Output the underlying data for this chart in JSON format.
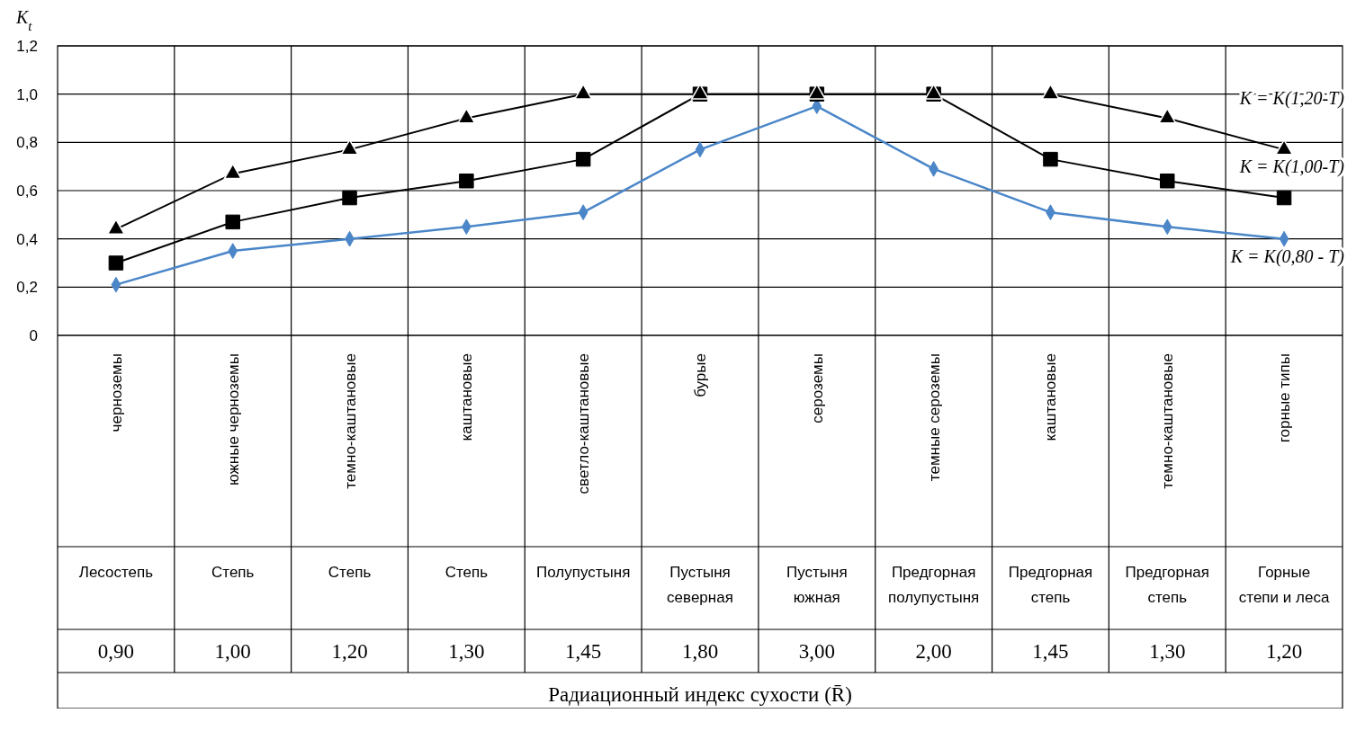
{
  "chart_data": {
    "type": "line",
    "ylabel": "K$_{t}$",
    "annotations": [
      "Радиационный индекс сухости (R̄)"
    ],
    "categories": [
      "черноземы\nЛесостепь\n0,90",
      "южные черноземы\nСтепь\n1,00",
      "темно-каштановые\nСтепь\n1,20",
      "каштановые\nСтепь\n1,30",
      "светло-каштановые\nПолупустыня\n1,45",
      "бурые\nПустыня северная\n1,80",
      "сероземы\nПустыня южная\n3,00",
      "темные сероземы\nПредгорная полупустыня\n2,00",
      "каштановые\nПредгорная степь\n1,45",
      "темно-каштановые\nПредгорная степь\n1,30",
      "горные типы\nГорные степи и леса\n1,20"
    ],
    "series": [
      {
        "name": "K = K(0,80 - T)",
        "color": "#4a86c8",
        "marker": "diamond",
        "values": [
          0.21,
          0.35,
          0.4,
          0.45,
          0.51,
          0.77,
          0.95,
          0.69,
          0.51,
          0.45,
          0.4
        ]
      },
      {
        "name": "K = K(1,00-T)",
        "color": "#000000",
        "marker": "square",
        "values": [
          0.3,
          0.47,
          0.57,
          0.64,
          0.73,
          1.0,
          1.0,
          1.0,
          0.73,
          0.64,
          0.57
        ]
      },
      {
        "name": "K = K(1,20-T)",
        "color": "#000000",
        "marker": "triangle",
        "values": [
          0.44,
          0.67,
          0.77,
          0.9,
          1.0,
          1.0,
          1.0,
          1.0,
          1.0,
          0.9,
          0.77
        ]
      }
    ],
    "ylim": [
      0,
      1.2
    ],
    "yticks": [
      0,
      {
        "value": 0.2,
        "label": "0,2"
      },
      {
        "value": 0.4,
        "label": "0,4"
      },
      {
        "value": 0.6,
        "label": "0,6"
      },
      {
        "value": 0.8,
        "label": "0,8"
      },
      {
        "value": 1.0,
        "label": "1,0"
      },
      {
        "value": 1.2,
        "label": "1,2"
      }
    ],
    "grid": true
  }
}
